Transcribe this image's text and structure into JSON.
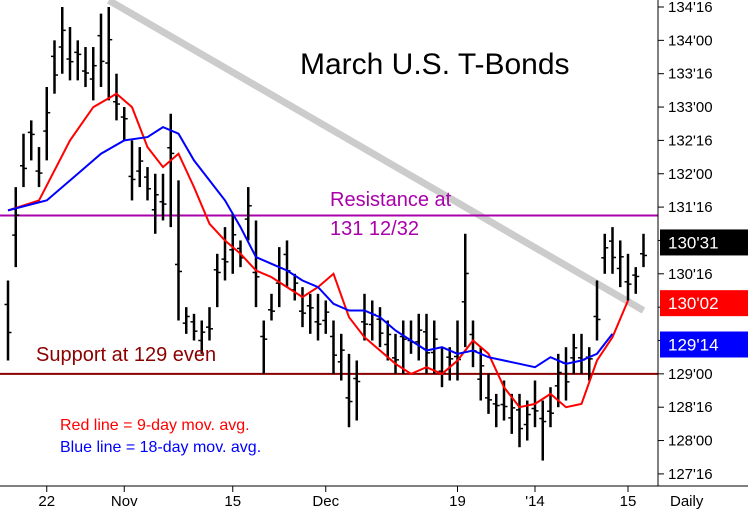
{
  "chart_data": {
    "type": "bar",
    "subtype": "ohlc-price-bars",
    "title": "March U.S. T-Bonds",
    "x_unit_label": "Daily",
    "x_tick_labels": [
      "22",
      "Nov",
      "15",
      "Dec",
      "19",
      "'14",
      "15"
    ],
    "y_tick_labels": [
      "134'16",
      "134'00",
      "133'16",
      "133'00",
      "132'16",
      "132'00",
      "131'16",
      "131'00",
      "130'16",
      "130'00",
      "129'16",
      "129'00",
      "128'16",
      "128'00",
      "127'16"
    ],
    "y_range": [
      127.25,
      134.6
    ],
    "grid": false,
    "price_tags": [
      {
        "label": "130'31",
        "value": 130.97,
        "bg": "#000000",
        "fg": "#ffffff"
      },
      {
        "label": "130'02",
        "value": 130.06,
        "bg": "#ff0000",
        "fg": "#ffffff"
      },
      {
        "label": "129'14",
        "value": 129.44,
        "bg": "#0000ff",
        "fg": "#ffffff"
      }
    ],
    "annotations": [
      {
        "text": "Resistance at",
        "color": "#aa00aa"
      },
      {
        "text": "131 12/32",
        "color": "#aa00aa"
      },
      {
        "text": "Support at 129 even",
        "color": "#8b0000"
      },
      {
        "text": "Red line = 9-day mov. avg.",
        "color": "#ff0000"
      },
      {
        "text": "Blue line = 18-day mov. avg.",
        "color": "#0000ff"
      }
    ],
    "reference_lines": [
      {
        "kind": "horizontal",
        "value": 131.375,
        "color": "#aa00aa"
      },
      {
        "kind": "horizontal",
        "value": 129.0,
        "color": "#8b0000"
      },
      {
        "kind": "trendline",
        "from": {
          "day": 13,
          "value": 134.6
        },
        "to": {
          "day": 82,
          "value": 129.95
        },
        "color": "#cccccc"
      }
    ],
    "series": [
      {
        "name": "9-day mov. avg.",
        "color": "#ff0000",
        "points": [
          [
            0,
            131.45
          ],
          [
            4,
            131.6
          ],
          [
            8,
            132.5
          ],
          [
            11,
            133.0
          ],
          [
            14,
            133.2
          ],
          [
            16,
            133.0
          ],
          [
            18,
            132.4
          ],
          [
            20,
            132.1
          ],
          [
            22,
            132.3
          ],
          [
            24,
            131.8
          ],
          [
            26,
            131.25
          ],
          [
            28,
            131.0
          ],
          [
            30,
            130.8
          ],
          [
            32,
            130.55
          ],
          [
            34,
            130.45
          ],
          [
            36,
            130.3
          ],
          [
            38,
            130.15
          ],
          [
            40,
            130.3
          ],
          [
            42,
            130.5
          ],
          [
            44,
            129.85
          ],
          [
            46,
            129.55
          ],
          [
            48,
            129.35
          ],
          [
            50,
            129.15
          ],
          [
            52,
            129.0
          ],
          [
            54,
            129.1
          ],
          [
            56,
            129.0
          ],
          [
            58,
            129.2
          ],
          [
            60,
            129.5
          ],
          [
            62,
            129.3
          ],
          [
            64,
            128.8
          ],
          [
            66,
            128.5
          ],
          [
            68,
            128.55
          ],
          [
            70,
            128.7
          ],
          [
            72,
            128.5
          ],
          [
            74,
            128.55
          ],
          [
            76,
            129.2
          ],
          [
            78,
            129.55
          ],
          [
            80,
            130.1
          ]
        ]
      },
      {
        "name": "18-day mov. avg.",
        "color": "#0000ff",
        "points": [
          [
            0,
            131.45
          ],
          [
            5,
            131.6
          ],
          [
            9,
            132.0
          ],
          [
            12,
            132.3
          ],
          [
            15,
            132.5
          ],
          [
            18,
            132.55
          ],
          [
            20,
            132.7
          ],
          [
            22,
            132.6
          ],
          [
            24,
            132.2
          ],
          [
            26,
            131.9
          ],
          [
            28,
            131.6
          ],
          [
            30,
            131.2
          ],
          [
            32,
            130.75
          ],
          [
            34,
            130.65
          ],
          [
            36,
            130.55
          ],
          [
            38,
            130.4
          ],
          [
            40,
            130.3
          ],
          [
            42,
            130.05
          ],
          [
            44,
            129.95
          ],
          [
            46,
            129.95
          ],
          [
            48,
            129.85
          ],
          [
            50,
            129.65
          ],
          [
            52,
            129.5
          ],
          [
            54,
            129.35
          ],
          [
            56,
            129.4
          ],
          [
            58,
            129.3
          ],
          [
            60,
            129.35
          ],
          [
            62,
            129.25
          ],
          [
            64,
            129.2
          ],
          [
            66,
            129.15
          ],
          [
            68,
            129.1
          ],
          [
            70,
            129.25
          ],
          [
            72,
            129.15
          ],
          [
            74,
            129.2
          ],
          [
            76,
            129.3
          ],
          [
            78,
            129.6
          ]
        ]
      }
    ],
    "bars": [
      [
        0,
        129.2,
        130.4
      ],
      [
        1,
        130.6,
        131.8
      ],
      [
        2,
        131.8,
        132.6
      ],
      [
        3,
        132.2,
        132.8
      ],
      [
        4,
        131.8,
        132.4
      ],
      [
        5,
        132.2,
        133.3
      ],
      [
        6,
        133.2,
        134.0
      ],
      [
        7,
        133.5,
        134.5
      ],
      [
        8,
        133.4,
        134.2
      ],
      [
        9,
        133.4,
        134.0
      ],
      [
        10,
        133.3,
        133.9
      ],
      [
        11,
        133.1,
        133.9
      ],
      [
        12,
        133.3,
        134.4
      ],
      [
        13,
        133.1,
        134.5
      ],
      [
        14,
        132.8,
        133.5
      ],
      [
        15,
        132.5,
        133.0
      ],
      [
        16,
        131.6,
        132.5
      ],
      [
        17,
        131.8,
        132.4
      ],
      [
        18,
        131.6,
        132.1
      ],
      [
        19,
        131.1,
        132.0
      ],
      [
        20,
        131.3,
        132.0
      ],
      [
        21,
        131.2,
        132.9
      ],
      [
        22,
        129.8,
        131.9
      ],
      [
        23,
        129.6,
        130.0
      ],
      [
        24,
        129.5,
        129.9
      ],
      [
        25,
        129.3,
        129.8
      ],
      [
        26,
        129.5,
        130.0
      ],
      [
        27,
        130.0,
        130.8
      ],
      [
        28,
        130.4,
        131.2
      ],
      [
        29,
        130.5,
        131.4
      ],
      [
        30,
        130.6,
        131.0
      ],
      [
        31,
        131.0,
        131.8
      ],
      [
        32,
        130.0,
        131.3
      ],
      [
        33,
        129.0,
        129.8
      ],
      [
        34,
        129.8,
        130.2
      ],
      [
        35,
        130.0,
        130.9
      ],
      [
        36,
        130.3,
        131.0
      ],
      [
        37,
        130.1,
        130.5
      ],
      [
        38,
        129.7,
        130.3
      ],
      [
        39,
        129.6,
        130.2
      ],
      [
        40,
        129.5,
        130.2
      ],
      [
        41,
        129.6,
        130.1
      ],
      [
        42,
        129.0,
        129.8
      ],
      [
        43,
        128.9,
        129.6
      ],
      [
        44,
        128.2,
        129.3
      ],
      [
        45,
        128.3,
        129.2
      ],
      [
        46,
        129.5,
        130.2
      ],
      [
        47,
        129.5,
        130.1
      ],
      [
        48,
        129.4,
        130.0
      ],
      [
        49,
        129.2,
        129.8
      ],
      [
        50,
        129.0,
        129.6
      ],
      [
        51,
        129.0,
        129.8
      ],
      [
        52,
        129.3,
        129.8
      ],
      [
        53,
        129.2,
        129.9
      ],
      [
        54,
        129.0,
        129.9
      ],
      [
        55,
        129.0,
        129.8
      ],
      [
        56,
        128.8,
        129.4
      ],
      [
        57,
        128.9,
        129.4
      ],
      [
        58,
        128.9,
        129.8
      ],
      [
        59,
        129.4,
        131.1
      ],
      [
        60,
        129.1,
        129.8
      ],
      [
        61,
        128.6,
        129.4
      ],
      [
        62,
        128.4,
        129.0
      ],
      [
        63,
        128.2,
        128.7
      ],
      [
        64,
        128.3,
        128.9
      ],
      [
        65,
        128.1,
        128.7
      ],
      [
        66,
        127.9,
        128.7
      ],
      [
        67,
        128.0,
        128.6
      ],
      [
        68,
        128.2,
        128.9
      ],
      [
        69,
        127.7,
        128.6
      ],
      [
        70,
        128.2,
        128.8
      ],
      [
        71,
        128.5,
        129.3
      ],
      [
        72,
        128.6,
        129.4
      ],
      [
        73,
        129.0,
        129.6
      ],
      [
        74,
        129.0,
        129.6
      ],
      [
        75,
        128.9,
        129.4
      ],
      [
        76,
        129.5,
        130.4
      ],
      [
        77,
        130.5,
        131.1
      ],
      [
        78,
        130.5,
        131.2
      ],
      [
        79,
        130.3,
        131.0
      ],
      [
        80,
        130.1,
        130.8
      ],
      [
        81,
        130.2,
        130.6
      ],
      [
        82,
        130.6,
        131.1
      ]
    ]
  }
}
